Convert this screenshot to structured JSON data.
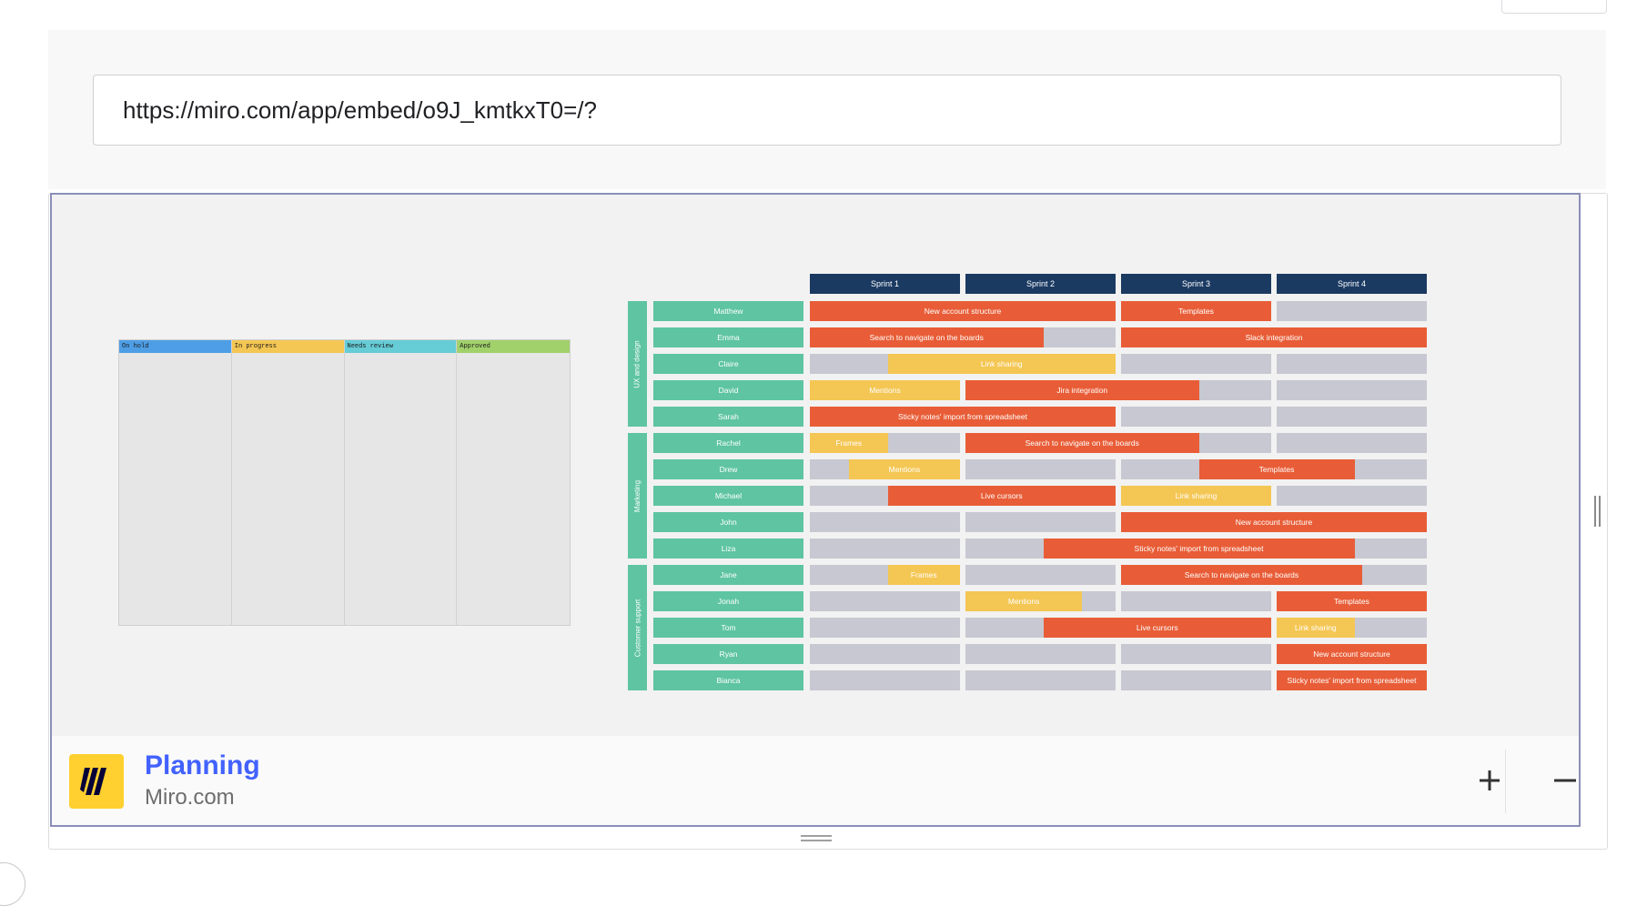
{
  "url_bar": {
    "value": "https://miro.com/app/embed/o9J_kmtkxT0=/?"
  },
  "board": {
    "title": "Planning",
    "source": "Miro.com"
  },
  "colors": {
    "sprint_header": "#1b3a62",
    "team": "#5ec4a2",
    "task_red": "#e85d37",
    "task_yellow": "#f4c653",
    "empty_cell": "#c7c8d1",
    "miro_yellow": "#ffd02f",
    "title_blue": "#4262ff"
  },
  "kanban": {
    "columns": [
      {
        "label": "On hold",
        "color": "#4e9ee6"
      },
      {
        "label": "In progress",
        "color": "#f4c653"
      },
      {
        "label": "Needs review",
        "color": "#66ccd6"
      },
      {
        "label": "Approved",
        "color": "#a1d16b"
      }
    ]
  },
  "sprints": [
    "Sprint 1",
    "Sprint 2",
    "Sprint 3",
    "Sprint 4"
  ],
  "groups": [
    {
      "label": "UX and design",
      "first_row": 0,
      "rows": 5
    },
    {
      "label": "Marketing",
      "first_row": 5,
      "rows": 5
    },
    {
      "label": "Customer support",
      "first_row": 10,
      "rows": 5
    }
  ],
  "people": [
    "Matthew",
    "Emma",
    "Claire",
    "David",
    "Sarah",
    "Rachel",
    "Drew",
    "Michael",
    "John",
    "Liza",
    "Jane",
    "Jonah",
    "Tom",
    "Ryan",
    "Bianca"
  ],
  "tasks": [
    {
      "row": 0,
      "label": "New account structure",
      "color": "red",
      "start": 0,
      "end": 2
    },
    {
      "row": 0,
      "label": "Templates",
      "color": "red",
      "start": 2,
      "end": 3
    },
    {
      "row": 1,
      "label": "Search to navigate on the boards",
      "color": "red",
      "start": 0,
      "end": 1.5
    },
    {
      "row": 1,
      "label": "Slack integration",
      "color": "red",
      "start": 2,
      "end": 4
    },
    {
      "row": 2,
      "label": "Link sharing",
      "color": "yellow",
      "start": 0.5,
      "end": 2
    },
    {
      "row": 3,
      "label": "Mentions",
      "color": "yellow",
      "start": 0,
      "end": 1
    },
    {
      "row": 3,
      "label": "Jira integration",
      "color": "red",
      "start": 1,
      "end": 2.5
    },
    {
      "row": 4,
      "label": "Sticky notes' import from spreadsheet",
      "color": "red",
      "start": 0,
      "end": 2
    },
    {
      "row": 5,
      "label": "Frames",
      "color": "yellow",
      "start": 0,
      "end": 0.5
    },
    {
      "row": 5,
      "label": "Search to navigate on the boards",
      "color": "red",
      "start": 1,
      "end": 2.5
    },
    {
      "row": 6,
      "label": "Mentions",
      "color": "yellow",
      "start": 0.25,
      "end": 1
    },
    {
      "row": 6,
      "label": "Templates",
      "color": "red",
      "start": 2.5,
      "end": 3.5
    },
    {
      "row": 7,
      "label": "Live cursors",
      "color": "red",
      "start": 0.5,
      "end": 2
    },
    {
      "row": 7,
      "label": "Link sharing",
      "color": "yellow",
      "start": 2,
      "end": 3
    },
    {
      "row": 8,
      "label": "New account structure",
      "color": "red",
      "start": 2,
      "end": 4
    },
    {
      "row": 9,
      "label": "Sticky notes' import from spreadsheet",
      "color": "red",
      "start": 1.5,
      "end": 3.5
    },
    {
      "row": 10,
      "label": "Frames",
      "color": "yellow",
      "start": 0.5,
      "end": 1
    },
    {
      "row": 10,
      "label": "Search to navigate on the boards",
      "color": "red",
      "start": 2,
      "end": 3.55
    },
    {
      "row": 11,
      "label": "Mentions",
      "color": "yellow",
      "start": 1,
      "end": 1.75
    },
    {
      "row": 11,
      "label": "Templates",
      "color": "red",
      "start": 3,
      "end": 4
    },
    {
      "row": 12,
      "label": "Live cursors",
      "color": "red",
      "start": 1.5,
      "end": 3
    },
    {
      "row": 12,
      "label": "Link sharing",
      "color": "yellow",
      "start": 3,
      "end": 3.5
    },
    {
      "row": 13,
      "label": "New account structure",
      "color": "red",
      "start": 3,
      "end": 4
    },
    {
      "row": 14,
      "label": "Sticky notes' import from spreadsheet",
      "color": "red",
      "start": 3,
      "end": 4
    }
  ],
  "icons": {
    "zoom_in": "plus-icon",
    "zoom_out": "minus-icon",
    "logo": "miro-logo-icon"
  }
}
